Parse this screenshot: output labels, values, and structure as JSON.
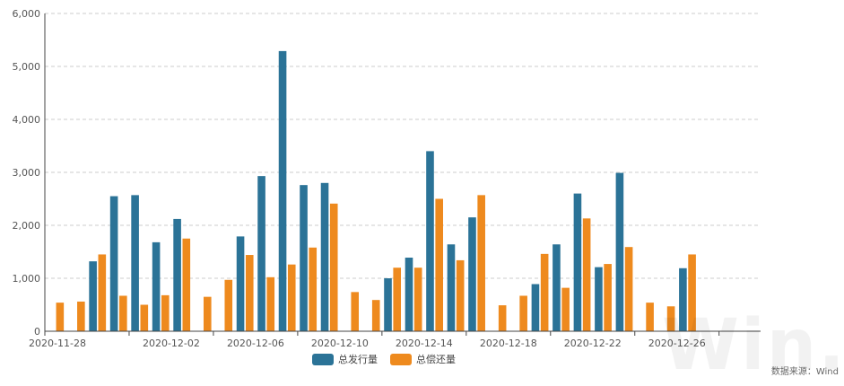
{
  "colors": {
    "issuance": "#2b7397",
    "repayment": "#ee8a1e",
    "grid": "#cccccc",
    "axis": "#444444"
  },
  "chart_data": {
    "type": "bar",
    "categories": [
      "2020-11-28",
      "2020-11-29",
      "2020-11-30",
      "2020-12-01",
      "2020-12-02",
      "2020-12-03",
      "2020-12-04",
      "2020-12-05",
      "2020-12-06",
      "2020-12-07",
      "2020-12-08",
      "2020-12-09",
      "2020-12-10",
      "2020-12-11",
      "2020-12-12",
      "2020-12-13",
      "2020-12-14",
      "2020-12-15",
      "2020-12-16",
      "2020-12-17",
      "2020-12-18",
      "2020-12-19",
      "2020-12-20",
      "2020-12-21",
      "2020-12-22",
      "2020-12-23",
      "2020-12-24",
      "2020-12-25",
      "2020-12-26",
      "2020-12-27",
      "2020-12-28",
      "2020-12-29",
      "2020-12-30",
      "2020-12-31"
    ],
    "x_tick_labels": [
      "2020-11-28",
      "2020-12-02",
      "2020-12-06",
      "2020-12-10",
      "2020-12-14",
      "2020-12-18",
      "2020-12-22",
      "2020-12-26"
    ],
    "y_tick_labels": [
      "0",
      "1,000",
      "2,000",
      "3,000",
      "4,000",
      "5,000",
      "6,000"
    ],
    "ylim": [
      0,
      6000
    ],
    "grid": true,
    "legend_position": "bottom-center",
    "series": [
      {
        "name": "总发行量",
        "values": [
          0,
          0,
          1320,
          2550,
          2570,
          1680,
          2120,
          0,
          0,
          1790,
          2930,
          5290,
          2760,
          2800,
          0,
          0,
          1000,
          1390,
          3400,
          1640,
          2150,
          0,
          0,
          890,
          1640,
          2600,
          1210,
          2990,
          0,
          0,
          1190,
          0,
          0,
          0
        ]
      },
      {
        "name": "总偿还量",
        "values": [
          540,
          560,
          1450,
          670,
          500,
          680,
          1750,
          650,
          970,
          1440,
          1020,
          1260,
          1580,
          2410,
          740,
          590,
          1200,
          1200,
          2500,
          1340,
          2570,
          490,
          670,
          1460,
          820,
          2130,
          1270,
          1590,
          540,
          470,
          1450,
          0,
          0,
          0
        ]
      }
    ]
  },
  "legend": {
    "issuance": "总发行量",
    "repayment": "总偿还量"
  },
  "source_text": "数据来源：Wind",
  "watermark_text": "Win.d"
}
